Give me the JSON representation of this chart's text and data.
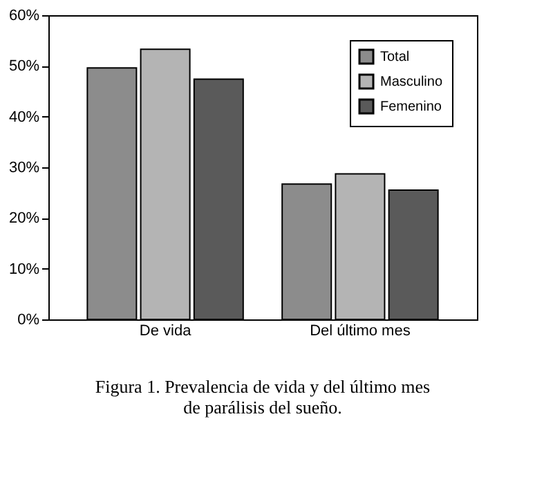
{
  "chart_data": {
    "type": "bar",
    "categories": [
      "De vida",
      "Del último mes"
    ],
    "series": [
      {
        "name": "Total",
        "color": "#8c8c8c",
        "values": [
          49.6,
          26.7
        ]
      },
      {
        "name": "Masculino",
        "color": "#b4b4b4",
        "values": [
          53.3,
          28.7
        ]
      },
      {
        "name": "Femenino",
        "color": "#5a5a5a",
        "values": [
          47.4,
          25.5
        ]
      }
    ],
    "ylim": [
      0,
      60
    ],
    "yticks": [
      {
        "value": 0,
        "label": "0%"
      },
      {
        "value": 10,
        "label": "10%"
      },
      {
        "value": 20,
        "label": "20%"
      },
      {
        "value": 30,
        "label": "30%"
      },
      {
        "value": 40,
        "label": "40%"
      },
      {
        "value": 50,
        "label": "50%"
      },
      {
        "value": 60,
        "label": "60%"
      }
    ],
    "grid": false,
    "legend": "top right",
    "annotations": [
      "Figura 1. Prevalencia de vida y del último mes",
      "de parálisis del sueño."
    ]
  }
}
